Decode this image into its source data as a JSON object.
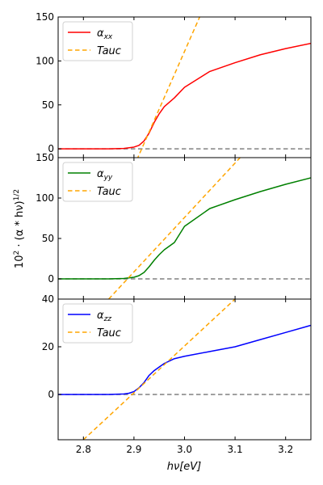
{
  "figure": {
    "ylabel_main": "10",
    "ylabel_sup1": "2",
    "ylabel_mid": " · (α * hν)",
    "ylabel_sup2": "1/2",
    "xlabel_main": "hν[eV]"
  },
  "chart_data": [
    {
      "type": "line",
      "xlim": [
        2.75,
        3.25
      ],
      "ylim": [
        -10,
        150
      ],
      "yticks": [
        0,
        50,
        100,
        150
      ],
      "xticks": [
        2.8,
        2.9,
        3.0,
        3.1,
        3.2
      ],
      "xtick_labels": [],
      "legend_position": "top-left",
      "baseline_y": 0,
      "series": [
        {
          "name": "α",
          "name_sub": "xx",
          "color": "#ff0000",
          "style": "solid",
          "x": [
            2.75,
            2.85,
            2.88,
            2.9,
            2.91,
            2.92,
            2.93,
            2.94,
            2.95,
            2.96,
            2.98,
            3.0,
            3.05,
            3.1,
            3.15,
            3.2,
            3.25
          ],
          "y": [
            0,
            0,
            0.5,
            2,
            4,
            9,
            18,
            30,
            40,
            48,
            58,
            70,
            88,
            98,
            107,
            114,
            120
          ]
        },
        {
          "name": "Tauc",
          "name_sub": "",
          "color": "#ffa500",
          "style": "dashed",
          "x": [
            2.9,
            3.03
          ],
          "y": [
            -20,
            150
          ]
        }
      ]
    },
    {
      "type": "line",
      "xlim": [
        2.75,
        3.25
      ],
      "ylim": [
        -25,
        150
      ],
      "yticks": [
        0,
        50,
        100,
        150
      ],
      "xticks": [
        2.8,
        2.9,
        3.0,
        3.1,
        3.2
      ],
      "xtick_labels": [],
      "legend_position": "top-left",
      "baseline_y": 0,
      "series": [
        {
          "name": "α",
          "name_sub": "yy",
          "color": "#008000",
          "style": "solid",
          "x": [
            2.75,
            2.85,
            2.88,
            2.9,
            2.91,
            2.92,
            2.93,
            2.94,
            2.95,
            2.96,
            2.98,
            3.0,
            3.05,
            3.1,
            3.15,
            3.2,
            3.25
          ],
          "y": [
            0,
            0,
            0.5,
            2,
            4,
            8,
            15,
            23,
            30,
            36,
            45,
            65,
            87,
            98,
            108,
            117,
            125
          ]
        },
        {
          "name": "Tauc",
          "name_sub": "",
          "color": "#ffa500",
          "style": "dashed",
          "x": [
            2.85,
            3.11
          ],
          "y": [
            -25,
            150
          ]
        }
      ]
    },
    {
      "type": "line",
      "xlim": [
        2.75,
        3.25
      ],
      "ylim": [
        -19,
        40
      ],
      "yticks": [
        0,
        20,
        40
      ],
      "xticks": [
        2.8,
        2.9,
        3.0,
        3.1,
        3.2
      ],
      "xtick_labels": [
        "2.8",
        "2.9",
        "3.0",
        "3.1",
        "3.2"
      ],
      "legend_position": "top-left",
      "baseline_y": 0,
      "series": [
        {
          "name": "α",
          "name_sub": "zz",
          "color": "#0000ff",
          "style": "solid",
          "x": [
            2.75,
            2.85,
            2.88,
            2.89,
            2.9,
            2.91,
            2.92,
            2.93,
            2.94,
            2.95,
            2.96,
            2.98,
            3.0,
            3.05,
            3.1,
            3.15,
            3.2,
            3.25
          ],
          "y": [
            0,
            0,
            0.2,
            0.5,
            1.2,
            2.8,
            5,
            8,
            10,
            11.5,
            13,
            15,
            16,
            18,
            20,
            23,
            26,
            29
          ]
        },
        {
          "name": "Tauc",
          "name_sub": "",
          "color": "#ffa500",
          "style": "dashed",
          "x": [
            2.8,
            3.1
          ],
          "y": [
            -19,
            40
          ]
        }
      ]
    }
  ]
}
